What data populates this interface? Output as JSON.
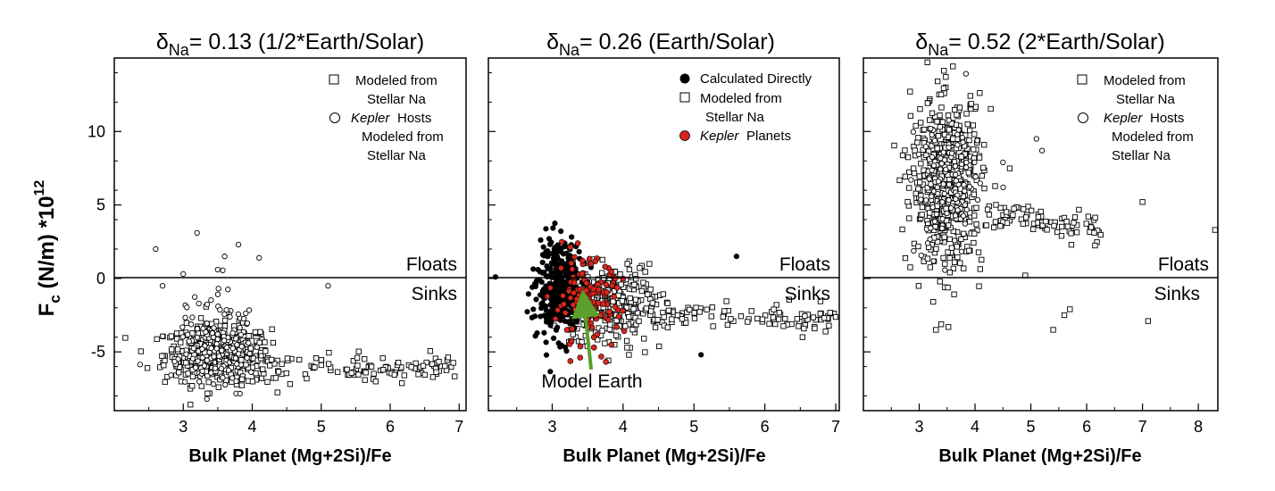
{
  "figure": {
    "ylabel_main": "F",
    "ylabel_sub": "c",
    "ylabel_rest": " (N/m) *10",
    "ylabel_sup": "12",
    "region_above": "Floats",
    "region_below": "Sinks",
    "annotation": "Model Earth"
  },
  "chart_data": [
    {
      "type": "scatter",
      "title_symbol": "δ",
      "title_sub": "Na",
      "title_rest": "= 0.13 (1/2*Earth/Solar)",
      "xlabel": "Bulk Planet (Mg+2Si)/Fe",
      "ylabel": "Fc (N/m) *10^12",
      "xlim": [
        2.0,
        7.1
      ],
      "ylim": [
        -9.0,
        15.0
      ],
      "xticks": [
        3,
        4,
        5,
        6,
        7
      ],
      "yticks": [
        -5,
        0,
        5,
        10
      ],
      "legend_position": "top-right",
      "legend": [
        {
          "marker": "open-square",
          "lines": [
            "Modeled from",
            "Stellar Na"
          ]
        },
        {
          "marker": "open-circle",
          "lines": [
            "Kepler Hosts",
            "Modeled from",
            "Stellar Na"
          ],
          "italic_prefix": "Kepler"
        }
      ],
      "series": [
        {
          "name": "Modeled from Stellar Na",
          "marker": "open-square",
          "n": 420,
          "center": [
            3.5,
            -5.2
          ],
          "spread": [
            0.55,
            1.0
          ],
          "tail": {
            "x": [
              4.0,
              7.0
            ],
            "y": [
              -6.2,
              -6.0
            ],
            "n": 110
          }
        },
        {
          "name": "Kepler Hosts Modeled from Stellar Na",
          "marker": "open-circle",
          "n": 170,
          "center": [
            3.5,
            -4.5
          ],
          "spread": [
            0.4,
            1.6
          ],
          "outliers": [
            [
              3.2,
              3.1
            ],
            [
              2.6,
              2.0
            ],
            [
              3.8,
              2.3
            ],
            [
              3.6,
              1.5
            ],
            [
              4.1,
              1.4
            ],
            [
              3.0,
              0.3
            ],
            [
              5.1,
              -0.5
            ],
            [
              2.7,
              -0.5
            ],
            [
              3.5,
              0.6
            ]
          ]
        }
      ]
    },
    {
      "type": "scatter",
      "title_symbol": "δ",
      "title_sub": "Na",
      "title_rest": "= 0.26 (Earth/Solar)",
      "xlabel": "Bulk Planet (Mg+2Si)/Fe",
      "ylabel": "Fc (N/m) *10^12",
      "xlim": [
        2.1,
        7.05
      ],
      "ylim": [
        -9.0,
        15.0
      ],
      "xticks": [
        3,
        4,
        5,
        6,
        7
      ],
      "yticks": [],
      "legend_position": "top-right",
      "legend": [
        {
          "marker": "filled-circle-black",
          "lines": [
            "Calculated Directly"
          ]
        },
        {
          "marker": "open-square",
          "lines": [
            "Modeled from",
            "Stellar Na"
          ]
        },
        {
          "marker": "filled-circle-red",
          "lines": [
            "Kepler Planets"
          ],
          "italic_prefix": "Kepler"
        }
      ],
      "series": [
        {
          "name": "Modeled from Stellar Na",
          "marker": "open-square",
          "n": 300,
          "center": [
            3.8,
            -1.8
          ],
          "spread": [
            0.5,
            1.3
          ],
          "tail": {
            "x": [
              4.3,
              7.0
            ],
            "y": [
              -2.4,
              -2.7
            ],
            "n": 100
          }
        },
        {
          "name": "Calculated Directly",
          "marker": "filled-circle-black",
          "n": 420,
          "center": [
            3.1,
            -0.7
          ],
          "spread": [
            0.22,
            1.5
          ],
          "outliers": [
            [
              5.6,
              1.5
            ],
            [
              5.1,
              -5.2
            ],
            [
              2.2,
              0.1
            ]
          ]
        },
        {
          "name": "Kepler Planets",
          "marker": "filled-circle-red",
          "n": 140,
          "center": [
            3.5,
            -1.8
          ],
          "spread": [
            0.35,
            1.5
          ]
        }
      ],
      "model_earth": {
        "x": 3.45,
        "y_tip": -1.7,
        "y_base": -6.2
      }
    },
    {
      "type": "scatter",
      "title_symbol": "δ",
      "title_sub": "Na",
      "title_rest": "= 0.52 (2*Earth/Solar)",
      "xlabel": "Bulk Planet (Mg+2Si)/Fe",
      "ylabel": "Fc (N/m) *10^12",
      "xlim": [
        2.0,
        8.35
      ],
      "ylim": [
        -9.0,
        15.0
      ],
      "xticks": [
        3,
        4,
        5,
        6,
        7,
        8
      ],
      "yticks": [],
      "legend_position": "top-right",
      "legend": [
        {
          "marker": "open-square",
          "lines": [
            "Modeled from",
            "Stellar Na"
          ]
        },
        {
          "marker": "open-circle",
          "lines": [
            "Kepler Hosts",
            "Modeled from",
            "Stellar Na"
          ],
          "italic_prefix": "Kepler"
        }
      ],
      "series": [
        {
          "name": "Modeled from Stellar Na",
          "marker": "open-square",
          "n": 520,
          "center": [
            3.5,
            6.5
          ],
          "spread": [
            0.45,
            2.9
          ],
          "tail": {
            "x": [
              4.2,
              6.3
            ],
            "y": [
              4.5,
              3.3
            ],
            "n": 80
          },
          "outliers": [
            [
              7.0,
              5.2
            ],
            [
              8.3,
              3.3
            ],
            [
              7.1,
              -2.9
            ],
            [
              5.4,
              -3.5
            ],
            [
              5.7,
              -2.1
            ],
            [
              5.6,
              -2.5
            ],
            [
              3.3,
              -3.5
            ],
            [
              4.9,
              0.2
            ]
          ]
        },
        {
          "name": "Kepler Hosts Modeled from Stellar Na",
          "marker": "open-circle",
          "n": 130,
          "center": [
            3.5,
            6.0
          ],
          "spread": [
            0.4,
            2.4
          ],
          "outliers": [
            [
              5.1,
              9.5
            ],
            [
              4.5,
              7.9
            ],
            [
              5.2,
              8.7
            ]
          ]
        }
      ]
    }
  ]
}
